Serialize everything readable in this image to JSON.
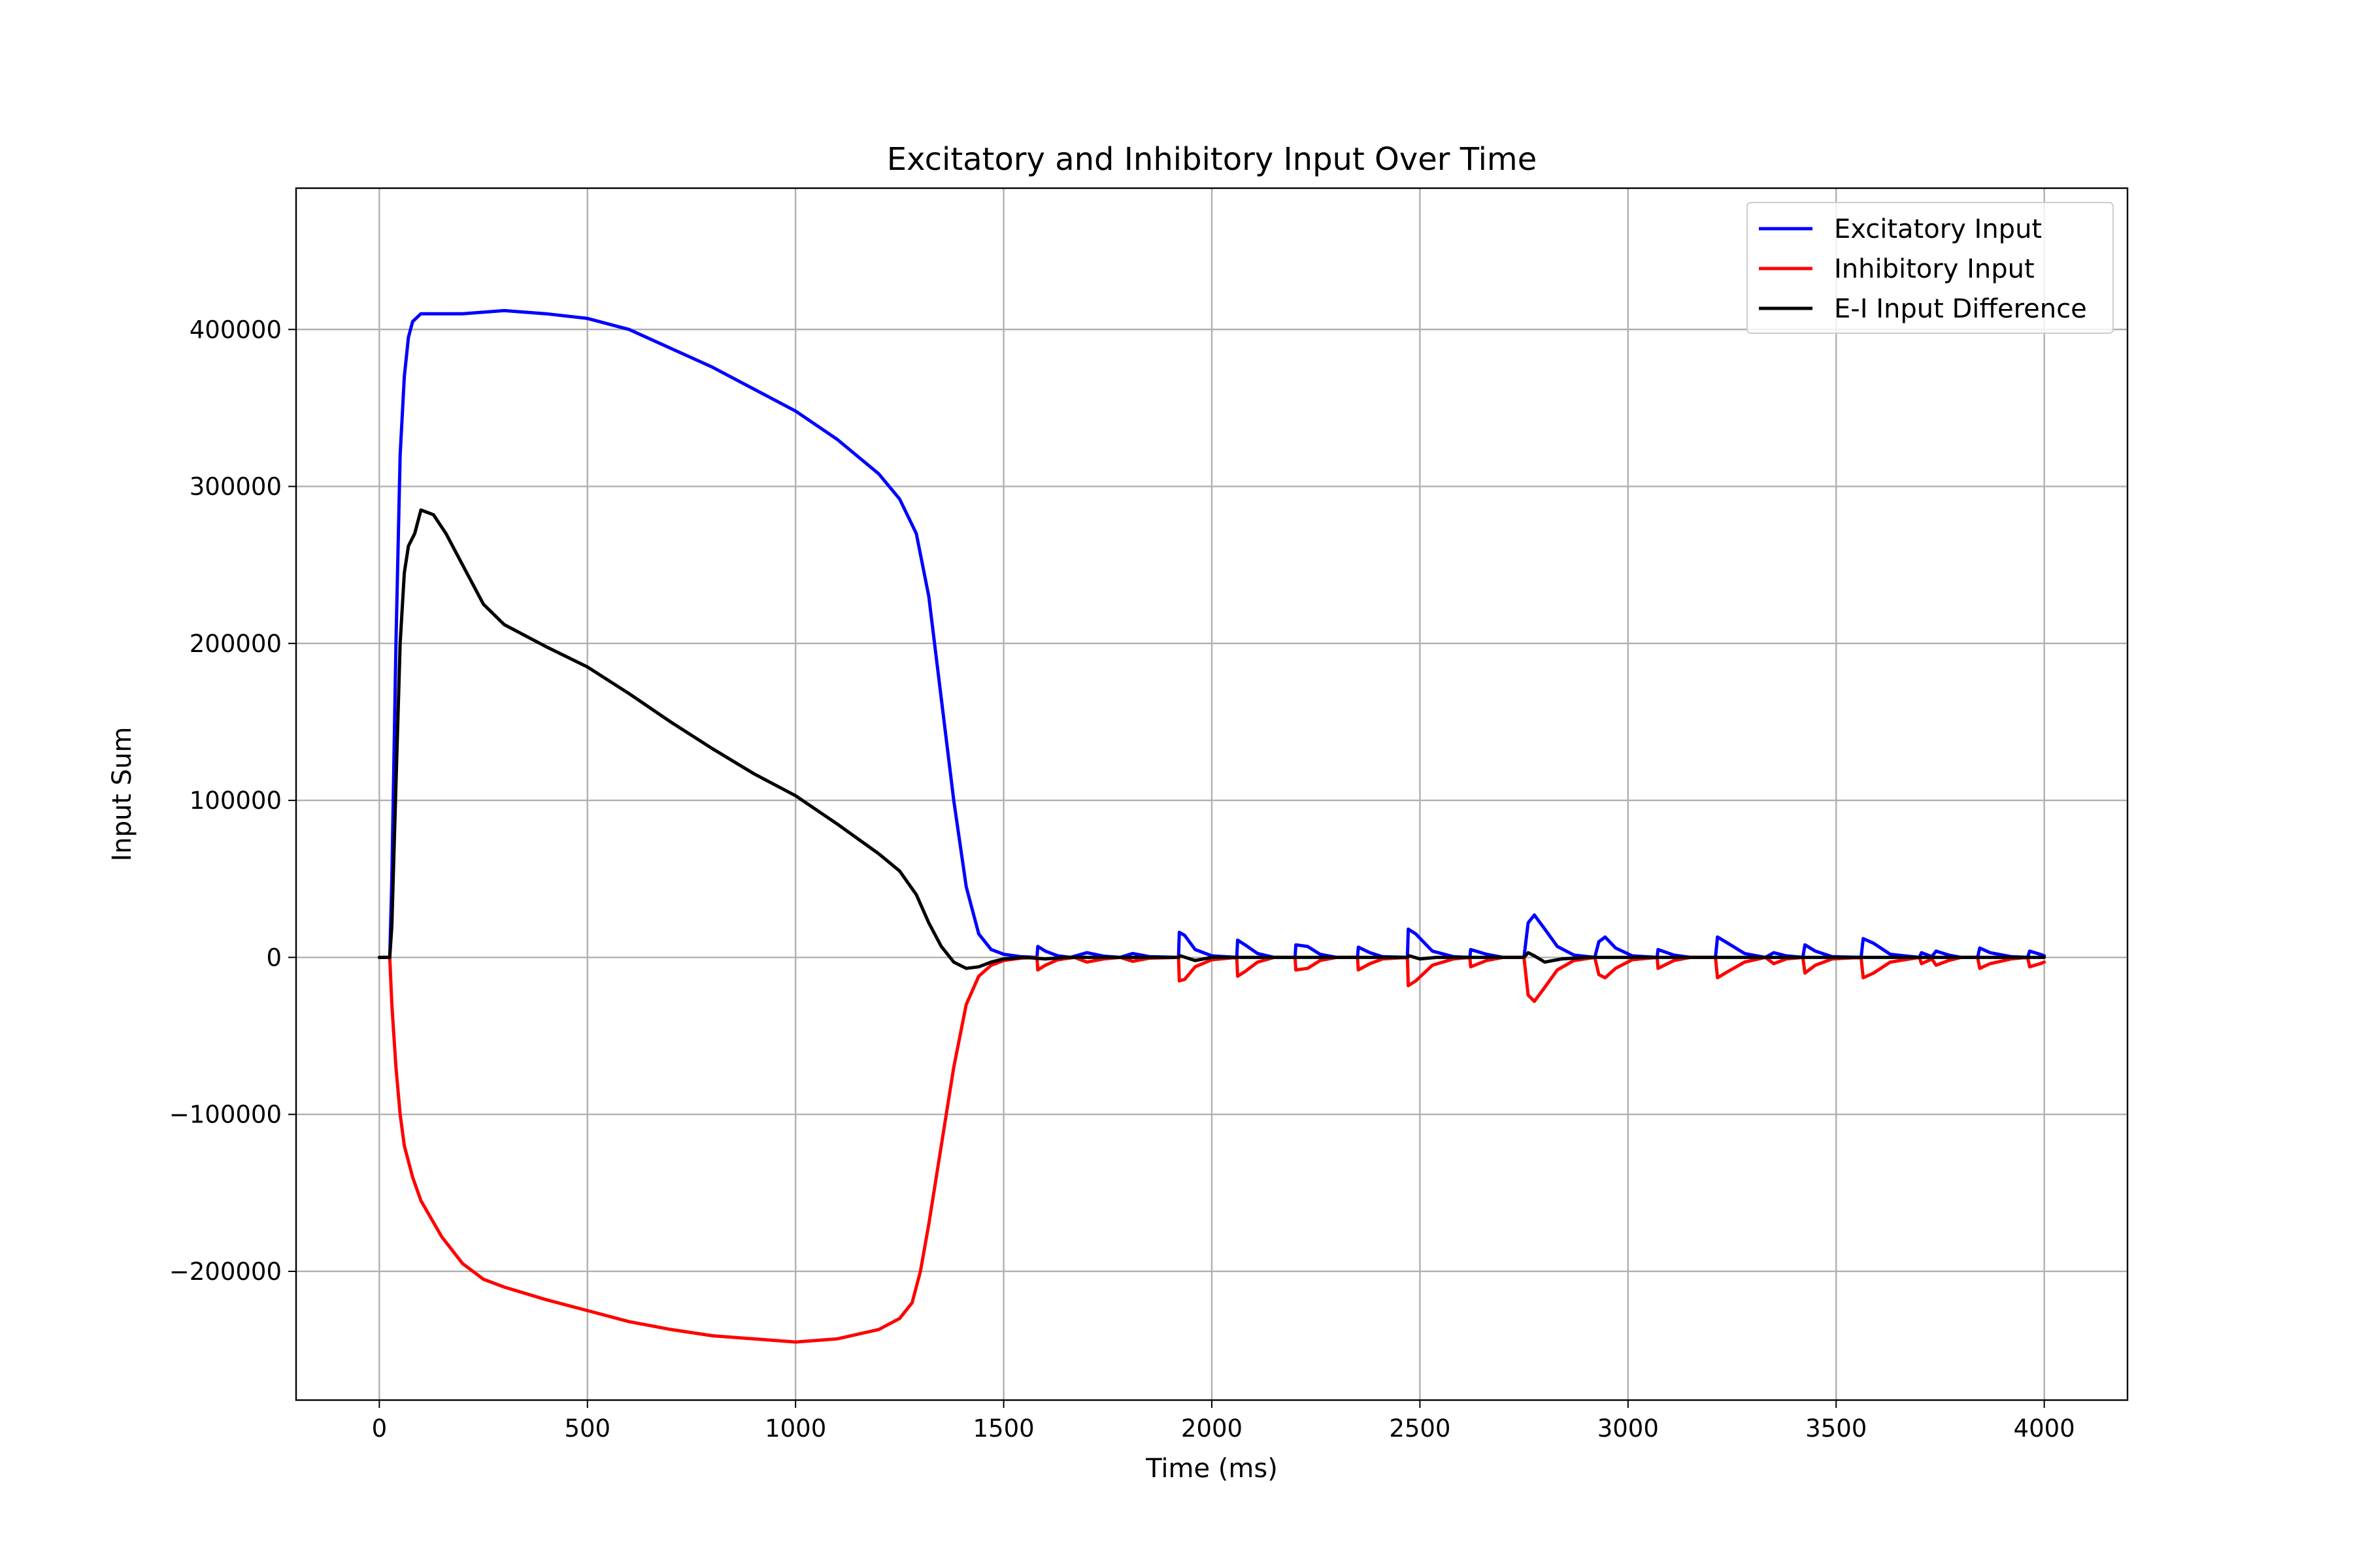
{
  "chart_data": {
    "type": "line",
    "title": "Excitatory and Inhibitory Input Over Time",
    "xlabel": "Time (ms)",
    "ylabel": "Input Sum",
    "xlim": [
      -200,
      4200
    ],
    "ylim": [
      -282000,
      490000
    ],
    "x_ticks": [
      0,
      500,
      1000,
      1500,
      2000,
      2500,
      3000,
      3500,
      4000
    ],
    "x_tick_labels": [
      "0",
      "500",
      "1000",
      "1500",
      "2000",
      "2500",
      "3000",
      "3500",
      "4000"
    ],
    "y_ticks": [
      -200000,
      -100000,
      0,
      100000,
      200000,
      300000,
      400000
    ],
    "y_tick_labels": [
      "−200000",
      "−100000",
      "0",
      "100000",
      "200000",
      "300000",
      "400000"
    ],
    "grid": true,
    "legend_position": "top-right",
    "series": [
      {
        "name": "Excitatory Input",
        "color": "#0000ff",
        "points": [
          [
            0,
            0
          ],
          [
            25,
            0
          ],
          [
            30,
            50000
          ],
          [
            40,
            200000
          ],
          [
            50,
            320000
          ],
          [
            60,
            370000
          ],
          [
            70,
            395000
          ],
          [
            80,
            405000
          ],
          [
            100,
            410000
          ],
          [
            200,
            410000
          ],
          [
            300,
            412000
          ],
          [
            400,
            410000
          ],
          [
            500,
            407000
          ],
          [
            600,
            400000
          ],
          [
            700,
            388000
          ],
          [
            800,
            376000
          ],
          [
            900,
            362000
          ],
          [
            1000,
            348000
          ],
          [
            1100,
            330000
          ],
          [
            1200,
            308000
          ],
          [
            1250,
            292000
          ],
          [
            1290,
            270000
          ],
          [
            1320,
            230000
          ],
          [
            1350,
            165000
          ],
          [
            1380,
            100000
          ],
          [
            1410,
            45000
          ],
          [
            1440,
            15000
          ],
          [
            1470,
            5000
          ],
          [
            1500,
            2000
          ],
          [
            1540,
            500
          ],
          [
            1580,
            0
          ],
          [
            1582,
            7000
          ],
          [
            1600,
            4000
          ],
          [
            1630,
            1000
          ],
          [
            1660,
            0
          ],
          [
            1700,
            3000
          ],
          [
            1740,
            800
          ],
          [
            1780,
            0
          ],
          [
            1810,
            2500
          ],
          [
            1850,
            500
          ],
          [
            1920,
            0
          ],
          [
            1922,
            16000
          ],
          [
            1935,
            14000
          ],
          [
            1960,
            5000
          ],
          [
            2000,
            1000
          ],
          [
            2060,
            0
          ],
          [
            2062,
            11000
          ],
          [
            2080,
            8000
          ],
          [
            2110,
            2500
          ],
          [
            2150,
            0
          ],
          [
            2200,
            0
          ],
          [
            2202,
            8000
          ],
          [
            2230,
            7000
          ],
          [
            2260,
            2000
          ],
          [
            2300,
            0
          ],
          [
            2350,
            0
          ],
          [
            2352,
            6500
          ],
          [
            2380,
            3000
          ],
          [
            2410,
            500
          ],
          [
            2470,
            0
          ],
          [
            2472,
            18000
          ],
          [
            2490,
            15000
          ],
          [
            2530,
            4000
          ],
          [
            2580,
            500
          ],
          [
            2620,
            0
          ],
          [
            2622,
            5000
          ],
          [
            2660,
            2000
          ],
          [
            2700,
            0
          ],
          [
            2750,
            0
          ],
          [
            2760,
            22000
          ],
          [
            2775,
            27000
          ],
          [
            2800,
            18000
          ],
          [
            2830,
            7000
          ],
          [
            2870,
            1500
          ],
          [
            2920,
            0
          ],
          [
            2930,
            10000
          ],
          [
            2945,
            13000
          ],
          [
            2970,
            6000
          ],
          [
            3010,
            1000
          ],
          [
            3070,
            0
          ],
          [
            3072,
            5000
          ],
          [
            3110,
            1500
          ],
          [
            3150,
            0
          ],
          [
            3210,
            0
          ],
          [
            3215,
            13000
          ],
          [
            3240,
            9000
          ],
          [
            3280,
            2500
          ],
          [
            3330,
            0
          ],
          [
            3350,
            3000
          ],
          [
            3380,
            1000
          ],
          [
            3420,
            0
          ],
          [
            3425,
            8000
          ],
          [
            3450,
            4000
          ],
          [
            3490,
            500
          ],
          [
            3560,
            0
          ],
          [
            3565,
            12000
          ],
          [
            3590,
            9000
          ],
          [
            3630,
            2000
          ],
          [
            3700,
            0
          ],
          [
            3705,
            3000
          ],
          [
            3730,
            500
          ],
          [
            3740,
            4000
          ],
          [
            3770,
            1500
          ],
          [
            3800,
            0
          ],
          [
            3840,
            0
          ],
          [
            3845,
            6000
          ],
          [
            3870,
            3000
          ],
          [
            3920,
            500
          ],
          [
            3960,
            0
          ],
          [
            3965,
            4000
          ],
          [
            3990,
            2000
          ],
          [
            4000,
            1000
          ]
        ]
      },
      {
        "name": "Inhibitory Input",
        "color": "#ff0000",
        "points": [
          [
            0,
            0
          ],
          [
            25,
            0
          ],
          [
            30,
            -30000
          ],
          [
            40,
            -70000
          ],
          [
            50,
            -100000
          ],
          [
            60,
            -120000
          ],
          [
            80,
            -140000
          ],
          [
            100,
            -155000
          ],
          [
            150,
            -178000
          ],
          [
            200,
            -195000
          ],
          [
            250,
            -205000
          ],
          [
            300,
            -210000
          ],
          [
            400,
            -218000
          ],
          [
            500,
            -225000
          ],
          [
            600,
            -232000
          ],
          [
            700,
            -237000
          ],
          [
            800,
            -241000
          ],
          [
            900,
            -243000
          ],
          [
            1000,
            -245000
          ],
          [
            1100,
            -243000
          ],
          [
            1200,
            -237000
          ],
          [
            1250,
            -230000
          ],
          [
            1280,
            -220000
          ],
          [
            1300,
            -200000
          ],
          [
            1320,
            -170000
          ],
          [
            1350,
            -120000
          ],
          [
            1380,
            -70000
          ],
          [
            1410,
            -30000
          ],
          [
            1440,
            -12000
          ],
          [
            1470,
            -5000
          ],
          [
            1500,
            -2000
          ],
          [
            1540,
            -500
          ],
          [
            1580,
            0
          ],
          [
            1582,
            -8000
          ],
          [
            1600,
            -5000
          ],
          [
            1630,
            -1500
          ],
          [
            1670,
            0
          ],
          [
            1700,
            -3000
          ],
          [
            1740,
            -1000
          ],
          [
            1780,
            0
          ],
          [
            1810,
            -2500
          ],
          [
            1850,
            -500
          ],
          [
            1920,
            0
          ],
          [
            1922,
            -15000
          ],
          [
            1935,
            -14000
          ],
          [
            1960,
            -6000
          ],
          [
            2000,
            -1500
          ],
          [
            2060,
            0
          ],
          [
            2062,
            -12000
          ],
          [
            2080,
            -9000
          ],
          [
            2110,
            -3000
          ],
          [
            2150,
            0
          ],
          [
            2200,
            0
          ],
          [
            2202,
            -8000
          ],
          [
            2230,
            -7000
          ],
          [
            2260,
            -2000
          ],
          [
            2300,
            0
          ],
          [
            2350,
            0
          ],
          [
            2352,
            -8000
          ],
          [
            2380,
            -4000
          ],
          [
            2410,
            -1000
          ],
          [
            2470,
            0
          ],
          [
            2472,
            -18000
          ],
          [
            2490,
            -15000
          ],
          [
            2530,
            -5000
          ],
          [
            2580,
            -1000
          ],
          [
            2620,
            0
          ],
          [
            2622,
            -6000
          ],
          [
            2660,
            -2000
          ],
          [
            2700,
            0
          ],
          [
            2750,
            0
          ],
          [
            2760,
            -24000
          ],
          [
            2775,
            -28000
          ],
          [
            2800,
            -19000
          ],
          [
            2830,
            -8000
          ],
          [
            2870,
            -2000
          ],
          [
            2920,
            0
          ],
          [
            2930,
            -11000
          ],
          [
            2945,
            -13000
          ],
          [
            2970,
            -7000
          ],
          [
            3010,
            -1500
          ],
          [
            3070,
            0
          ],
          [
            3072,
            -7000
          ],
          [
            3110,
            -2000
          ],
          [
            3150,
            0
          ],
          [
            3210,
            0
          ],
          [
            3215,
            -13000
          ],
          [
            3240,
            -9000
          ],
          [
            3280,
            -3000
          ],
          [
            3330,
            0
          ],
          [
            3350,
            -4000
          ],
          [
            3380,
            -1000
          ],
          [
            3420,
            0
          ],
          [
            3425,
            -10000
          ],
          [
            3450,
            -5000
          ],
          [
            3490,
            -1000
          ],
          [
            3560,
            0
          ],
          [
            3565,
            -13000
          ],
          [
            3590,
            -10000
          ],
          [
            3630,
            -3000
          ],
          [
            3700,
            0
          ],
          [
            3705,
            -4000
          ],
          [
            3730,
            -1000
          ],
          [
            3740,
            -5000
          ],
          [
            3770,
            -2000
          ],
          [
            3800,
            0
          ],
          [
            3840,
            0
          ],
          [
            3845,
            -7000
          ],
          [
            3870,
            -4000
          ],
          [
            3920,
            -1000
          ],
          [
            3960,
            0
          ],
          [
            3965,
            -6000
          ],
          [
            3990,
            -4000
          ],
          [
            4000,
            -3000
          ]
        ]
      },
      {
        "name": "E-I Input Difference",
        "color": "#000000",
        "points": [
          [
            0,
            0
          ],
          [
            25,
            0
          ],
          [
            30,
            20000
          ],
          [
            40,
            110000
          ],
          [
            50,
            200000
          ],
          [
            60,
            245000
          ],
          [
            70,
            262000
          ],
          [
            85,
            270000
          ],
          [
            100,
            285000
          ],
          [
            130,
            282000
          ],
          [
            160,
            270000
          ],
          [
            200,
            250000
          ],
          [
            250,
            225000
          ],
          [
            300,
            212000
          ],
          [
            400,
            198000
          ],
          [
            500,
            185000
          ],
          [
            600,
            168000
          ],
          [
            700,
            150000
          ],
          [
            800,
            133000
          ],
          [
            900,
            117000
          ],
          [
            1000,
            103000
          ],
          [
            1100,
            85000
          ],
          [
            1200,
            66000
          ],
          [
            1250,
            55000
          ],
          [
            1290,
            40000
          ],
          [
            1320,
            22000
          ],
          [
            1350,
            7000
          ],
          [
            1380,
            -3000
          ],
          [
            1410,
            -7000
          ],
          [
            1440,
            -6000
          ],
          [
            1470,
            -3000
          ],
          [
            1500,
            -1000
          ],
          [
            1550,
            0
          ],
          [
            1600,
            -1000
          ],
          [
            1650,
            0
          ],
          [
            1920,
            0
          ],
          [
            1925,
            1000
          ],
          [
            1960,
            -2000
          ],
          [
            2000,
            0
          ],
          [
            2470,
            0
          ],
          [
            2475,
            1000
          ],
          [
            2500,
            -1000
          ],
          [
            2540,
            0
          ],
          [
            2750,
            0
          ],
          [
            2760,
            3000
          ],
          [
            2775,
            1000
          ],
          [
            2800,
            -3000
          ],
          [
            2840,
            -1000
          ],
          [
            2900,
            0
          ],
          [
            4000,
            0
          ]
        ]
      }
    ]
  }
}
